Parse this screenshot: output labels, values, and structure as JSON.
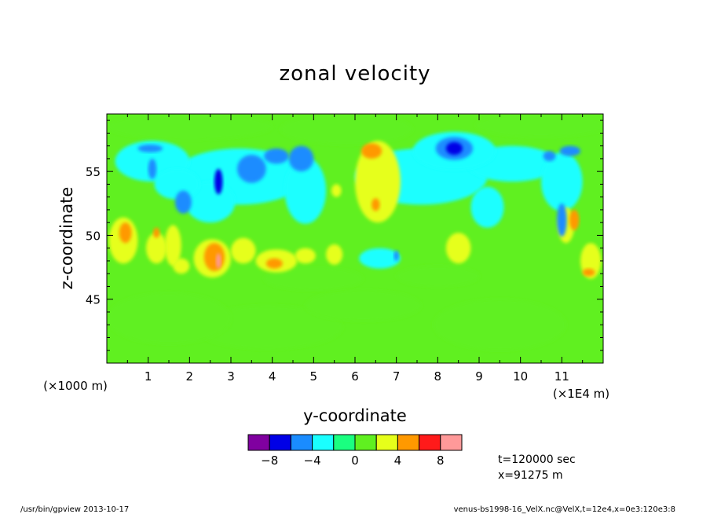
{
  "chart_data": {
    "type": "heatmap",
    "title": "zonal velocity",
    "xlabel": "y-coordinate",
    "ylabel": "z-coordinate",
    "x_units": "(×1E4 m)",
    "y_units": "(×1000 m)",
    "xlim": [
      0,
      12
    ],
    "ylim": [
      40,
      59.5
    ],
    "x_ticks": [
      "1",
      "2",
      "3",
      "4",
      "5",
      "6",
      "7",
      "8",
      "9",
      "10",
      "11"
    ],
    "y_ticks": [
      "45",
      "50",
      "55"
    ],
    "colorbar": {
      "levels": [
        -10,
        -8,
        -6,
        -4,
        -2,
        0,
        2,
        4,
        6,
        8,
        10
      ],
      "tick_labels": [
        "-8",
        "-4",
        "0",
        "4",
        "8"
      ],
      "tick_values": [
        -8,
        -4,
        0,
        4,
        8
      ],
      "colors": [
        "#8000a0",
        "#0000e6",
        "#1a8cff",
        "#1affff",
        "#1aff80",
        "#60f020",
        "#e6ff1a",
        "#ff9900",
        "#ff1a1a",
        "#ff9999"
      ]
    },
    "background_level_color": "#60f020",
    "features": [
      {
        "y": 1.1,
        "z": 55.8,
        "rx": 0.9,
        "rz": 1.6,
        "value": -2.6
      },
      {
        "y": 1.05,
        "z": 56.8,
        "rx": 0.3,
        "rz": 0.3,
        "value": -4.5
      },
      {
        "y": 1.1,
        "z": 55.2,
        "rx": 0.1,
        "rz": 0.8,
        "value": -5
      },
      {
        "y": 1.7,
        "z": 54.0,
        "rx": 0.55,
        "rz": 1.2,
        "value": -2.6
      },
      {
        "y": 1.85,
        "z": 52.6,
        "rx": 0.2,
        "rz": 0.9,
        "value": -4.5
      },
      {
        "y": 3.2,
        "z": 54.6,
        "rx": 1.6,
        "rz": 2.2,
        "value": -2.8
      },
      {
        "y": 2.7,
        "z": 54.2,
        "rx": 0.1,
        "rz": 1.0,
        "value": -6.5
      },
      {
        "y": 3.5,
        "z": 55.2,
        "rx": 0.35,
        "rz": 1.1,
        "value": -4.3
      },
      {
        "y": 2.5,
        "z": 52.6,
        "rx": 0.6,
        "rz": 1.6,
        "value": -2.6
      },
      {
        "y": 4.1,
        "z": 56.2,
        "rx": 0.3,
        "rz": 0.6,
        "value": -4.3
      },
      {
        "y": 4.7,
        "z": 56.0,
        "rx": 0.3,
        "rz": 1.0,
        "value": -4.3
      },
      {
        "y": 4.8,
        "z": 53.5,
        "rx": 0.5,
        "rz": 2.6,
        "value": -2.6
      },
      {
        "y": 6.55,
        "z": 54.2,
        "rx": 0.55,
        "rz": 3.2,
        "value": 2.5
      },
      {
        "y": 6.4,
        "z": 56.6,
        "rx": 0.25,
        "rz": 0.6,
        "value": 4.5
      },
      {
        "y": 6.5,
        "z": 52.4,
        "rx": 0.1,
        "rz": 0.5,
        "value": 4.4
      },
      {
        "y": 8.4,
        "z": 56.6,
        "rx": 1.0,
        "rz": 1.5,
        "value": -3.0
      },
      {
        "y": 8.4,
        "z": 56.8,
        "rx": 0.45,
        "rz": 0.9,
        "value": -5.0
      },
      {
        "y": 8.4,
        "z": 56.8,
        "rx": 0.2,
        "rz": 0.5,
        "value": -7.5
      },
      {
        "y": 7.6,
        "z": 54.6,
        "rx": 1.6,
        "rz": 2.2,
        "value": -2.4
      },
      {
        "y": 9.8,
        "z": 55.6,
        "rx": 1.1,
        "rz": 1.4,
        "value": -2.4
      },
      {
        "y": 9.2,
        "z": 52.2,
        "rx": 0.4,
        "rz": 1.6,
        "value": -2.4
      },
      {
        "y": 10.7,
        "z": 56.2,
        "rx": 0.15,
        "rz": 0.4,
        "value": -4.5
      },
      {
        "y": 11.2,
        "z": 56.6,
        "rx": 0.25,
        "rz": 0.4,
        "value": -4.5
      },
      {
        "y": 11.0,
        "z": 54.2,
        "rx": 0.5,
        "rz": 2.3,
        "value": -2.6
      },
      {
        "y": 11.0,
        "z": 51.2,
        "rx": 0.12,
        "rz": 1.3,
        "value": -5
      },
      {
        "y": 6.6,
        "z": 48.2,
        "rx": 0.5,
        "rz": 0.8,
        "value": -2.4
      },
      {
        "y": 7.0,
        "z": 48.4,
        "rx": 0.06,
        "rz": 0.4,
        "value": -4.5
      },
      {
        "y": 0.4,
        "z": 49.6,
        "rx": 0.35,
        "rz": 1.8,
        "value": 2.5
      },
      {
        "y": 0.45,
        "z": 50.2,
        "rx": 0.15,
        "rz": 0.8,
        "value": 4.5
      },
      {
        "y": 1.2,
        "z": 49.0,
        "rx": 0.25,
        "rz": 1.2,
        "value": 2.5
      },
      {
        "y": 1.2,
        "z": 50.2,
        "rx": 0.08,
        "rz": 0.4,
        "value": 4.4
      },
      {
        "y": 1.6,
        "z": 49.2,
        "rx": 0.2,
        "rz": 1.6,
        "value": 2.4
      },
      {
        "y": 1.8,
        "z": 47.6,
        "rx": 0.2,
        "rz": 0.6,
        "value": 2.4
      },
      {
        "y": 2.55,
        "z": 48.2,
        "rx": 0.45,
        "rz": 1.5,
        "value": 2.6
      },
      {
        "y": 2.6,
        "z": 48.3,
        "rx": 0.25,
        "rz": 1.1,
        "value": 4.5
      },
      {
        "y": 2.7,
        "z": 48.0,
        "rx": 0.06,
        "rz": 0.6,
        "value": 8.5
      },
      {
        "y": 3.3,
        "z": 48.8,
        "rx": 0.3,
        "rz": 1.0,
        "value": 2.4
      },
      {
        "y": 4.1,
        "z": 48.0,
        "rx": 0.5,
        "rz": 0.9,
        "value": 2.5
      },
      {
        "y": 4.05,
        "z": 47.8,
        "rx": 0.2,
        "rz": 0.4,
        "value": 4.4
      },
      {
        "y": 4.8,
        "z": 48.4,
        "rx": 0.25,
        "rz": 0.6,
        "value": 2.4
      },
      {
        "y": 5.5,
        "z": 48.5,
        "rx": 0.2,
        "rz": 0.8,
        "value": 2.4
      },
      {
        "y": 5.55,
        "z": 53.5,
        "rx": 0.12,
        "rz": 0.5,
        "value": 2.4
      },
      {
        "y": 8.5,
        "z": 49.0,
        "rx": 0.3,
        "rz": 1.2,
        "value": 2.4
      },
      {
        "y": 11.1,
        "z": 50.8,
        "rx": 0.2,
        "rz": 1.4,
        "value": 2.5
      },
      {
        "y": 11.3,
        "z": 51.2,
        "rx": 0.12,
        "rz": 0.8,
        "value": 4.4
      },
      {
        "y": 11.7,
        "z": 48.0,
        "rx": 0.25,
        "rz": 1.4,
        "value": 2.5
      },
      {
        "y": 11.65,
        "z": 47.1,
        "rx": 0.15,
        "rz": 0.3,
        "value": 4.4
      },
      {
        "y": 1.5,
        "z": 43.5,
        "rx": 1.5,
        "rz": 2.0,
        "value": 0.6
      },
      {
        "y": 3.9,
        "z": 42.8,
        "rx": 1.8,
        "rz": 1.7,
        "value": 0.6
      },
      {
        "y": 6.2,
        "z": 44.5,
        "rx": 1.4,
        "rz": 1.2,
        "value": 0.6
      },
      {
        "y": 9.5,
        "z": 43.0,
        "rx": 1.6,
        "rz": 2.0,
        "value": 0.6
      },
      {
        "y": 5.0,
        "z": 46.6,
        "rx": 1.2,
        "rz": 0.9,
        "value": 0.6
      },
      {
        "y": 8.0,
        "z": 46.8,
        "rx": 1.0,
        "rz": 0.8,
        "value": 0.6
      },
      {
        "y": 2.0,
        "z": 58.5,
        "rx": 2.0,
        "rz": 1.0,
        "value": 0.6
      },
      {
        "y": 5.8,
        "z": 58.3,
        "rx": 1.6,
        "rz": 1.2,
        "value": 0.6
      },
      {
        "y": 10.5,
        "z": 58.6,
        "rx": 1.6,
        "rz": 0.9,
        "value": 0.6
      }
    ],
    "annotations": [
      "t=120000 sec",
      "x=91275 m"
    ]
  },
  "footer": {
    "left": "/usr/bin/gpview   2013-10-17",
    "right": "venus-bs1998-16_VelX.nc@VelX,t=12e4,x=0e3:120e3:8"
  }
}
